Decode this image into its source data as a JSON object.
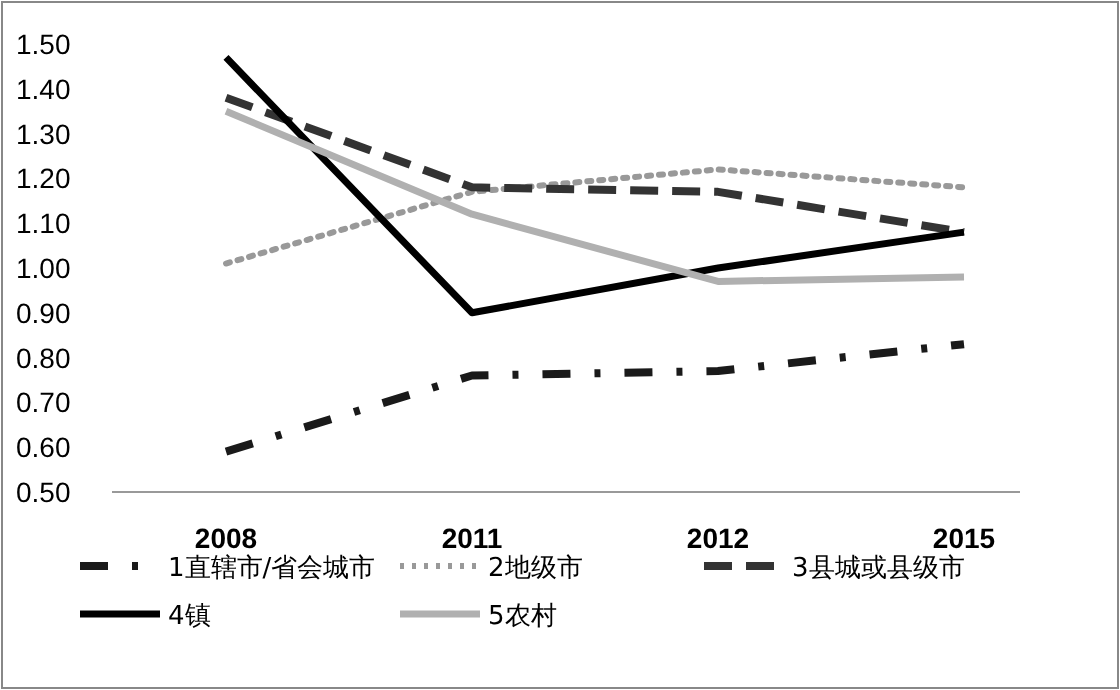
{
  "chart_data": {
    "type": "line",
    "categories": [
      "2008",
      "2011",
      "2012",
      "2015"
    ],
    "ylim": [
      0.5,
      1.5
    ],
    "yticks": [
      {
        "value": 0.5,
        "label": "0.50"
      },
      {
        "value": 0.6,
        "label": "0.60"
      },
      {
        "value": 0.7,
        "label": "0.70"
      },
      {
        "value": 0.8,
        "label": "0.80"
      },
      {
        "value": 0.9,
        "label": "0.90"
      },
      {
        "value": 1.0,
        "label": "1.00"
      },
      {
        "value": 1.1,
        "label": "1.10"
      },
      {
        "value": 1.2,
        "label": "1.20"
      },
      {
        "value": 1.3,
        "label": "1.30"
      },
      {
        "value": 1.4,
        "label": "1.40"
      },
      {
        "value": 1.5,
        "label": "1.50"
      }
    ],
    "grid": false,
    "legend": "bottom",
    "marker": "none",
    "series": [
      {
        "name": "1直辖市/省会城市",
        "color": "#1a1a1a",
        "line_style": "dashdot",
        "values": [
          0.59,
          0.76,
          0.77,
          0.83
        ]
      },
      {
        "name": "2地级市",
        "color": "#999999",
        "line_style": "dotted",
        "values": [
          1.01,
          1.17,
          1.22,
          1.18
        ]
      },
      {
        "name": "3县城或县级市",
        "color": "#333333",
        "line_style": "dashed",
        "values": [
          1.38,
          1.18,
          1.17,
          1.08
        ]
      },
      {
        "name": "4镇",
        "color": "#000000",
        "line_style": "solid",
        "values": [
          1.47,
          0.9,
          1.0,
          1.08
        ]
      },
      {
        "name": "5农村",
        "color": "#b0b0b0",
        "line_style": "solid",
        "values": [
          1.35,
          1.12,
          0.97,
          0.98
        ]
      }
    ]
  }
}
